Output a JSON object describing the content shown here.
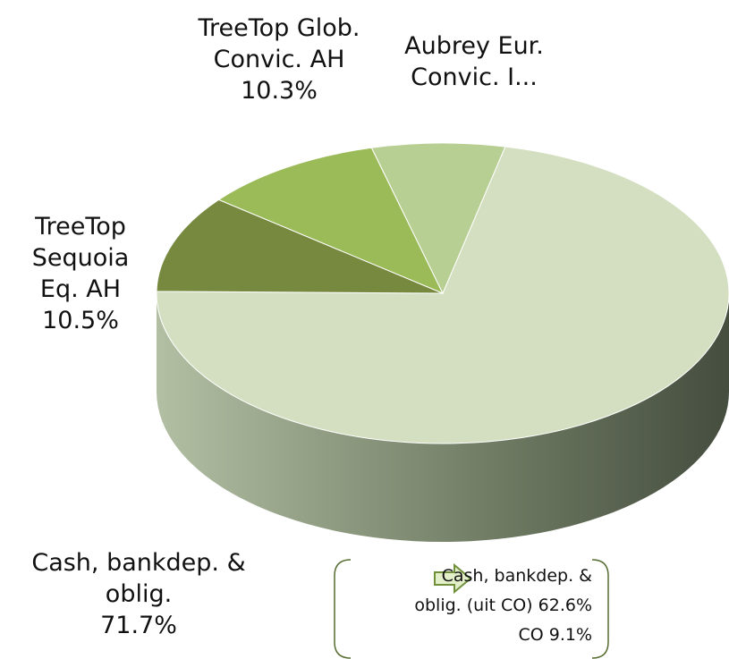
{
  "chart_data": {
    "type": "pie",
    "categories": [
      "Cash, bankdep. & oblig.",
      "TreeTop Sequoia Eq. AH",
      "TreeTop Glob. Convic. AH",
      "Aubrey Eur. Convic. I..."
    ],
    "values": [
      71.7,
      10.5,
      10.3,
      7.5
    ],
    "value_labels": [
      "71.7%",
      "10.5%",
      "10.3%",
      null
    ],
    "colors": [
      "#d3dfc0",
      "#76893f",
      "#9bbb59",
      "#b8cf93"
    ],
    "annotation": {
      "lines": [
        "Cash, bankdep. &",
        "oblig. (uit CO) 62.6%",
        "CO 9.1%"
      ]
    }
  }
}
